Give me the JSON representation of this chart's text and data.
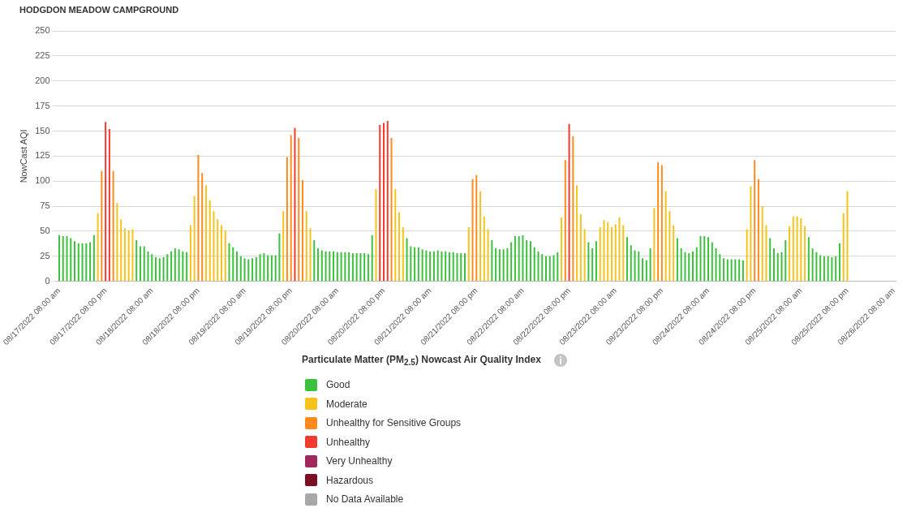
{
  "chart_data": {
    "type": "bar",
    "title": "HODGDON MEADOW CAMPGROUND",
    "ylabel": "NowCast AQI",
    "legend_title": "Particulate Matter (PM$_{2.5}$) Nowcast Air Quality Index",
    "categories": [
      "08/17/2022 08:00 am",
      null,
      null,
      null,
      null,
      null,
      null,
      null,
      null,
      null,
      null,
      null,
      "08/17/2022 08:00 pm",
      null,
      null,
      null,
      null,
      null,
      null,
      null,
      null,
      null,
      null,
      null,
      "08/18/2022 08:00 am",
      null,
      null,
      null,
      null,
      null,
      null,
      null,
      null,
      null,
      null,
      null,
      "08/18/2022 08:00 pm",
      null,
      null,
      null,
      null,
      null,
      null,
      null,
      null,
      null,
      null,
      null,
      "08/19/2022 08:00 am",
      null,
      null,
      null,
      null,
      null,
      null,
      null,
      null,
      null,
      null,
      null,
      "08/19/2022 08:00 pm",
      null,
      null,
      null,
      null,
      null,
      null,
      null,
      null,
      null,
      null,
      null,
      "08/20/2022 08:00 am",
      null,
      null,
      null,
      null,
      null,
      null,
      null,
      null,
      null,
      null,
      null,
      "08/20/2022 08:00 pm",
      null,
      null,
      null,
      null,
      null,
      null,
      null,
      null,
      null,
      null,
      null,
      "08/21/2022 08:00 am",
      null,
      null,
      null,
      null,
      null,
      null,
      null,
      null,
      null,
      null,
      null,
      "08/21/2022 08:00 pm",
      null,
      null,
      null,
      null,
      null,
      null,
      null,
      null,
      null,
      null,
      null,
      "08/22/2022 08:00 am",
      null,
      null,
      null,
      null,
      null,
      null,
      null,
      null,
      null,
      null,
      null,
      "08/22/2022 08:00 pm",
      null,
      null,
      null,
      null,
      null,
      null,
      null,
      null,
      null,
      null,
      null,
      "08/23/2022 08:00 am",
      null,
      null,
      null,
      null,
      null,
      null,
      null,
      null,
      null,
      null,
      null,
      "08/23/2022 08:00 pm",
      null,
      null,
      null,
      null,
      null,
      null,
      null,
      null,
      null,
      null,
      null,
      "08/24/2022 08:00 am",
      null,
      null,
      null,
      null,
      null,
      null,
      null,
      null,
      null,
      null,
      null,
      "08/24/2022 08:00 pm",
      null,
      null,
      null,
      null,
      null,
      null,
      null,
      null,
      null,
      null,
      null,
      "08/25/2022 08:00 am",
      null,
      null,
      null,
      null,
      null,
      null,
      null,
      null,
      null,
      null,
      null,
      "08/25/2022 08:00 pm",
      null,
      null,
      null,
      null,
      null,
      null,
      null,
      null,
      null,
      null,
      null,
      "08/26/2022 08:00 am"
    ],
    "series": [
      {
        "name": "Good",
        "color": "#3cc13c",
        "values": [
          46,
          45,
          45,
          43,
          40,
          38,
          38,
          38,
          39,
          46,
          null,
          null,
          null,
          null,
          null,
          null,
          null,
          null,
          null,
          null,
          41,
          35,
          35,
          30,
          27,
          24,
          23,
          24,
          27,
          30,
          33,
          32,
          30,
          29,
          null,
          null,
          null,
          null,
          null,
          null,
          null,
          null,
          null,
          null,
          38,
          34,
          30,
          25,
          23,
          22,
          23,
          24,
          27,
          28,
          26,
          26,
          26,
          48,
          null,
          null,
          null,
          null,
          null,
          null,
          null,
          null,
          41,
          33,
          31,
          30,
          30,
          30,
          29,
          29,
          29,
          29,
          28,
          28,
          28,
          28,
          27,
          46,
          null,
          null,
          null,
          null,
          null,
          null,
          null,
          null,
          43,
          35,
          34,
          34,
          32,
          31,
          30,
          30,
          31,
          30,
          30,
          29,
          29,
          28,
          28,
          28,
          null,
          null,
          null,
          null,
          null,
          null,
          41,
          33,
          32,
          32,
          33,
          39,
          45,
          45,
          46,
          41,
          40,
          34,
          30,
          27,
          25,
          25,
          26,
          29,
          null,
          null,
          null,
          null,
          null,
          null,
          null,
          39,
          33,
          40,
          null,
          null,
          null,
          null,
          null,
          null,
          null,
          44,
          36,
          31,
          30,
          23,
          21,
          33,
          null,
          null,
          null,
          null,
          null,
          null,
          43,
          33,
          29,
          28,
          30,
          34,
          45,
          45,
          44,
          39,
          33,
          27,
          23,
          22,
          22,
          22,
          22,
          21,
          null,
          null,
          null,
          null,
          null,
          null,
          43,
          33,
          28,
          29,
          41,
          null,
          null,
          null,
          null,
          null,
          44,
          33,
          29,
          26,
          25,
          25,
          24,
          25,
          38,
          null,
          null,
          null,
          null,
          null,
          null,
          null,
          null,
          null,
          null,
          null,
          null,
          null,
          null
        ]
      },
      {
        "name": "Moderate",
        "color": "#f7c31a",
        "values": [
          null,
          null,
          null,
          null,
          null,
          null,
          null,
          null,
          null,
          null,
          68,
          null,
          null,
          null,
          null,
          78,
          62,
          53,
          51,
          52,
          null,
          null,
          null,
          null,
          null,
          null,
          null,
          null,
          null,
          null,
          null,
          null,
          null,
          null,
          56,
          85,
          null,
          null,
          96,
          81,
          70,
          62,
          56,
          51,
          null,
          null,
          null,
          null,
          null,
          null,
          null,
          null,
          null,
          null,
          null,
          null,
          null,
          null,
          70,
          null,
          null,
          null,
          null,
          null,
          70,
          53,
          null,
          null,
          null,
          null,
          null,
          null,
          null,
          null,
          null,
          null,
          null,
          null,
          null,
          null,
          null,
          null,
          92,
          null,
          null,
          null,
          null,
          92,
          69,
          54,
          null,
          null,
          null,
          null,
          null,
          null,
          null,
          null,
          null,
          null,
          null,
          null,
          null,
          null,
          null,
          null,
          54,
          null,
          null,
          90,
          65,
          52,
          null,
          null,
          null,
          null,
          null,
          null,
          null,
          null,
          null,
          null,
          null,
          null,
          null,
          null,
          null,
          null,
          null,
          null,
          64,
          null,
          null,
          null,
          96,
          67,
          52,
          null,
          null,
          null,
          54,
          61,
          59,
          54,
          57,
          64,
          56,
          null,
          null,
          null,
          null,
          null,
          null,
          null,
          73,
          null,
          null,
          90,
          70,
          56,
          null,
          null,
          null,
          null,
          null,
          null,
          null,
          null,
          null,
          null,
          null,
          null,
          null,
          null,
          null,
          null,
          null,
          null,
          52,
          95,
          null,
          null,
          75,
          56,
          null,
          null,
          null,
          null,
          null,
          55,
          65,
          65,
          63,
          55,
          null,
          null,
          null,
          null,
          null,
          null,
          null,
          null,
          null,
          68,
          90,
          null,
          null,
          null,
          null,
          null,
          null,
          null,
          null,
          null,
          null,
          null,
          null
        ]
      },
      {
        "name": "Unhealthy for Sensitive Groups",
        "color": "#ff8b1f",
        "values": [
          null,
          null,
          null,
          null,
          null,
          null,
          null,
          null,
          null,
          null,
          null,
          110,
          null,
          null,
          110,
          null,
          null,
          null,
          null,
          null,
          null,
          null,
          null,
          null,
          null,
          null,
          null,
          null,
          null,
          null,
          null,
          null,
          null,
          null,
          null,
          null,
          126,
          108,
          null,
          null,
          null,
          null,
          null,
          null,
          null,
          null,
          null,
          null,
          null,
          null,
          null,
          null,
          null,
          null,
          null,
          null,
          null,
          null,
          null,
          124,
          146,
          null,
          143,
          101,
          null,
          null,
          null,
          null,
          null,
          null,
          null,
          null,
          null,
          null,
          null,
          null,
          null,
          null,
          null,
          null,
          null,
          null,
          null,
          null,
          null,
          null,
          143,
          null,
          null,
          null,
          null,
          null,
          null,
          null,
          null,
          null,
          null,
          null,
          null,
          null,
          null,
          null,
          null,
          null,
          null,
          null,
          null,
          102,
          106,
          null,
          null,
          null,
          null,
          null,
          null,
          null,
          null,
          null,
          null,
          null,
          null,
          null,
          null,
          null,
          null,
          null,
          null,
          null,
          null,
          null,
          null,
          121,
          null,
          145,
          null,
          null,
          null,
          null,
          null,
          null,
          null,
          null,
          null,
          null,
          null,
          null,
          null,
          null,
          null,
          null,
          null,
          null,
          null,
          null,
          null,
          119,
          116,
          null,
          null,
          null,
          null,
          null,
          null,
          null,
          null,
          null,
          null,
          null,
          null,
          null,
          null,
          null,
          null,
          null,
          null,
          null,
          null,
          null,
          null,
          null,
          121,
          102,
          null,
          null,
          null,
          null,
          null,
          null,
          null,
          null,
          null,
          null,
          null,
          null,
          null,
          null,
          null,
          null,
          null,
          null,
          null,
          null,
          null,
          null,
          null,
          null,
          null,
          null,
          null,
          null,
          null,
          null,
          null,
          null,
          null,
          null,
          null
        ]
      },
      {
        "name": "Unhealthy",
        "color": "#f43a2e",
        "values": [
          null,
          null,
          null,
          null,
          null,
          null,
          null,
          null,
          null,
          null,
          null,
          null,
          159,
          152,
          null,
          null,
          null,
          null,
          null,
          null,
          null,
          null,
          null,
          null,
          null,
          null,
          null,
          null,
          null,
          null,
          null,
          null,
          null,
          null,
          null,
          null,
          null,
          null,
          null,
          null,
          null,
          null,
          null,
          null,
          null,
          null,
          null,
          null,
          null,
          null,
          null,
          null,
          null,
          null,
          null,
          null,
          null,
          null,
          null,
          null,
          null,
          153,
          null,
          null,
          null,
          null,
          null,
          null,
          null,
          null,
          null,
          null,
          null,
          null,
          null,
          null,
          null,
          null,
          null,
          null,
          null,
          null,
          null,
          156,
          158,
          160,
          null,
          null,
          null,
          null,
          null,
          null,
          null,
          null,
          null,
          null,
          null,
          null,
          null,
          null,
          null,
          null,
          null,
          null,
          null,
          null,
          null,
          null,
          null,
          null,
          null,
          null,
          null,
          null,
          null,
          null,
          null,
          null,
          null,
          null,
          null,
          null,
          null,
          null,
          null,
          null,
          null,
          null,
          null,
          null,
          null,
          null,
          157,
          null,
          null,
          null,
          null,
          null,
          null,
          null,
          null,
          null,
          null,
          null,
          null,
          null,
          null,
          null,
          null,
          null,
          null,
          null,
          null,
          null,
          null,
          null,
          null,
          null,
          null,
          null,
          null,
          null,
          null,
          null,
          null,
          null,
          null,
          null,
          null,
          null,
          null,
          null,
          null,
          null,
          null,
          null,
          null,
          null,
          null,
          null,
          null,
          null,
          null,
          null,
          null,
          null,
          null,
          null,
          null,
          null,
          null,
          null,
          null,
          null,
          null,
          null,
          null,
          null,
          null,
          null,
          null,
          null,
          null,
          null,
          null,
          null,
          null,
          null,
          null,
          null,
          null,
          null,
          null,
          null,
          null,
          null,
          null
        ]
      },
      {
        "name": "Very Unhealthy",
        "color": "#a0285f",
        "values": [
          null,
          null,
          null,
          null,
          null,
          null,
          null,
          null,
          null,
          null,
          null,
          null,
          null,
          null,
          null,
          null,
          null,
          null,
          null,
          null,
          null,
          null,
          null,
          null,
          null,
          null,
          null,
          null,
          null,
          null,
          null,
          null,
          null,
          null,
          null,
          null,
          null,
          null,
          null,
          null,
          null,
          null,
          null,
          null,
          null,
          null,
          null,
          null,
          null,
          null,
          null,
          null,
          null,
          null,
          null,
          null,
          null,
          null,
          null,
          null,
          null,
          null,
          null,
          null,
          null,
          null,
          null,
          null,
          null,
          null,
          null,
          null,
          null,
          null,
          null,
          null,
          null,
          null,
          null,
          null,
          null,
          null,
          null,
          null,
          null,
          null,
          null,
          null,
          null,
          null,
          null,
          null,
          null,
          null,
          null,
          null,
          null,
          null,
          null,
          null,
          null,
          null,
          null,
          null,
          null,
          null,
          null,
          null,
          null,
          null,
          null,
          null,
          null,
          null,
          null,
          null,
          null,
          null,
          null,
          null,
          null,
          null,
          null,
          null,
          null,
          null,
          null,
          null,
          null,
          null,
          null,
          null,
          null,
          null,
          null,
          null,
          null,
          null,
          null,
          null,
          null,
          null,
          null,
          null,
          null,
          null,
          null,
          null,
          null,
          null,
          null,
          null,
          null,
          null,
          null,
          null,
          null,
          null,
          null,
          null,
          null,
          null,
          null,
          null,
          null,
          null,
          null,
          null,
          null,
          null,
          null,
          null,
          null,
          null,
          null,
          null,
          null,
          null,
          null,
          null,
          null,
          null,
          null,
          null,
          null,
          null,
          null,
          null,
          null,
          null,
          null,
          null,
          null,
          null,
          null,
          null,
          null,
          null,
          null,
          null,
          null,
          null,
          null,
          null,
          null,
          null,
          null,
          null,
          null,
          null,
          null,
          null,
          null,
          null,
          null,
          null,
          null
        ]
      },
      {
        "name": "Hazardous",
        "color": "#7e1023",
        "values": [
          null,
          null,
          null,
          null,
          null,
          null,
          null,
          null,
          null,
          null,
          null,
          null,
          null,
          null,
          null,
          null,
          null,
          null,
          null,
          null,
          null,
          null,
          null,
          null,
          null,
          null,
          null,
          null,
          null,
          null,
          null,
          null,
          null,
          null,
          null,
          null,
          null,
          null,
          null,
          null,
          null,
          null,
          null,
          null,
          null,
          null,
          null,
          null,
          null,
          null,
          null,
          null,
          null,
          null,
          null,
          null,
          null,
          null,
          null,
          null,
          null,
          null,
          null,
          null,
          null,
          null,
          null,
          null,
          null,
          null,
          null,
          null,
          null,
          null,
          null,
          null,
          null,
          null,
          null,
          null,
          null,
          null,
          null,
          null,
          null,
          null,
          null,
          null,
          null,
          null,
          null,
          null,
          null,
          null,
          null,
          null,
          null,
          null,
          null,
          null,
          null,
          null,
          null,
          null,
          null,
          null,
          null,
          null,
          null,
          null,
          null,
          null,
          null,
          null,
          null,
          null,
          null,
          null,
          null,
          null,
          null,
          null,
          null,
          null,
          null,
          null,
          null,
          null,
          null,
          null,
          null,
          null,
          null,
          null,
          null,
          null,
          null,
          null,
          null,
          null,
          null,
          null,
          null,
          null,
          null,
          null,
          null,
          null,
          null,
          null,
          null,
          null,
          null,
          null,
          null,
          null,
          null,
          null,
          null,
          null,
          null,
          null,
          null,
          null,
          null,
          null,
          null,
          null,
          null,
          null,
          null,
          null,
          null,
          null,
          null,
          null,
          null,
          null,
          null,
          null,
          null,
          null,
          null,
          null,
          null,
          null,
          null,
          null,
          null,
          null,
          null,
          null,
          null,
          null,
          null,
          null,
          null,
          null,
          null,
          null,
          null,
          null,
          null,
          null,
          null,
          null,
          null,
          null,
          null,
          null,
          null,
          null,
          null,
          null,
          null,
          null,
          null
        ]
      },
      {
        "name": "No Data Available",
        "color": "#a8a8a8",
        "values": [
          null,
          null,
          null,
          null,
          null,
          null,
          null,
          null,
          null,
          null,
          null,
          null,
          null,
          null,
          null,
          null,
          null,
          null,
          null,
          null,
          null,
          null,
          null,
          null,
          null,
          null,
          null,
          null,
          null,
          null,
          null,
          null,
          null,
          null,
          null,
          null,
          null,
          null,
          null,
          null,
          null,
          null,
          null,
          null,
          null,
          null,
          null,
          null,
          null,
          null,
          null,
          null,
          null,
          null,
          null,
          null,
          null,
          null,
          null,
          null,
          null,
          null,
          null,
          null,
          null,
          null,
          null,
          null,
          null,
          null,
          null,
          null,
          null,
          null,
          null,
          null,
          null,
          null,
          null,
          null,
          null,
          null,
          null,
          null,
          null,
          null,
          null,
          null,
          null,
          null,
          null,
          null,
          null,
          null,
          null,
          null,
          null,
          null,
          null,
          null,
          null,
          null,
          null,
          null,
          null,
          null,
          null,
          null,
          null,
          null,
          null,
          null,
          null,
          null,
          null,
          null,
          null,
          null,
          null,
          null,
          null,
          null,
          null,
          null,
          null,
          null,
          null,
          null,
          null,
          null,
          null,
          null,
          null,
          null,
          null,
          null,
          null,
          null,
          null,
          null,
          null,
          null,
          null,
          null,
          null,
          null,
          null,
          null,
          null,
          null,
          null,
          null,
          null,
          null,
          null,
          null,
          null,
          null,
          null,
          null,
          null,
          null,
          null,
          null,
          null,
          null,
          null,
          null,
          null,
          null,
          null,
          null,
          null,
          null,
          null,
          null,
          null,
          null,
          null,
          null,
          null,
          null,
          null,
          null,
          null,
          null,
          null,
          null,
          null,
          null,
          null,
          null,
          null,
          null,
          null,
          null,
          null,
          null,
          null,
          null,
          null,
          null,
          null,
          null,
          null,
          null,
          null,
          null,
          null,
          null,
          null,
          null,
          null,
          null,
          null,
          null,
          null
        ]
      }
    ],
    "stacked": true,
    "ylim": [
      0,
      250
    ],
    "yticks": [
      0,
      25,
      50,
      75,
      100,
      125,
      150,
      175,
      200,
      225,
      250
    ],
    "grid": "y",
    "legend": "bottom"
  }
}
